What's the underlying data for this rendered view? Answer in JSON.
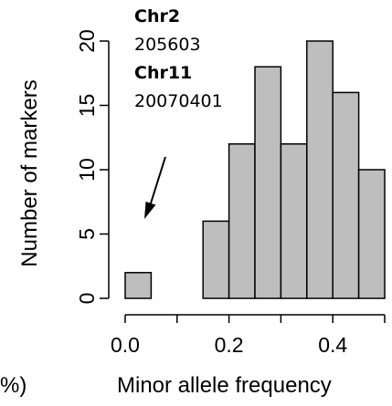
{
  "chart_data": {
    "type": "bar",
    "subtype": "histogram",
    "bin_edges": [
      0,
      0.05,
      0.1,
      0.15,
      0.2,
      0.25,
      0.3,
      0.35,
      0.4,
      0.45,
      0.5
    ],
    "values": [
      2,
      0,
      0,
      6,
      12,
      18,
      12,
      20,
      16,
      10
    ],
    "xlabel": "Minor allele frequency",
    "ylabel": "Number of markers",
    "xlim": [
      0,
      0.5
    ],
    "ylim": [
      0,
      20
    ],
    "x_ticks": [
      "0.0",
      "0.2",
      "0.4"
    ],
    "y_ticks": [
      "0",
      "5",
      "10",
      "15",
      "20"
    ],
    "grid": false,
    "bar_fill": "#bebebe",
    "bar_stroke": "#000000",
    "annotations": {
      "label1": "Chr2",
      "value1": "205603",
      "label2": "Chr11",
      "value2": "20070401"
    },
    "left_fragment": "%)"
  }
}
